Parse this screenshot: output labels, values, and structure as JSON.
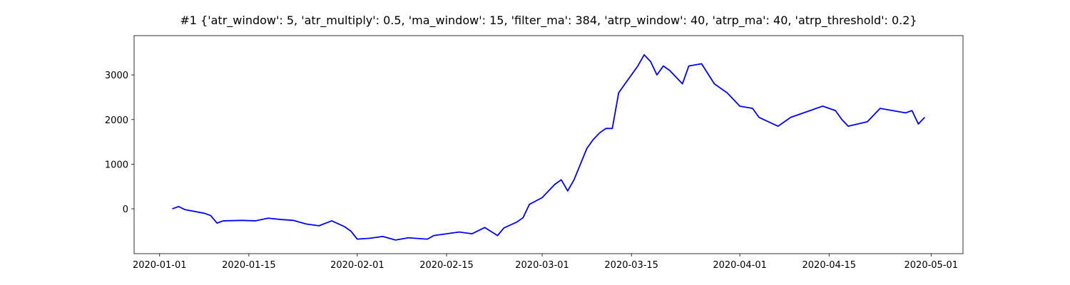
{
  "chart_data": {
    "type": "line",
    "title": "#1 {'atr_window': 5, 'atr_multiply': 0.5, 'ma_window': 15, 'filter_ma': 384, 'atrp_window': 40, 'atrp_ma': 40, 'atrp_threshold': 0.2}",
    "x": [
      "2020-01-03",
      "2020-01-04",
      "2020-01-05",
      "2020-01-08",
      "2020-01-09",
      "2020-01-10",
      "2020-01-11",
      "2020-01-14",
      "2020-01-16",
      "2020-01-18",
      "2020-01-20",
      "2020-01-22",
      "2020-01-24",
      "2020-01-26",
      "2020-01-28",
      "2020-01-30",
      "2020-01-31",
      "2020-02-01",
      "2020-02-03",
      "2020-02-05",
      "2020-02-07",
      "2020-02-09",
      "2020-02-12",
      "2020-02-13",
      "2020-02-15",
      "2020-02-17",
      "2020-02-19",
      "2020-02-21",
      "2020-02-23",
      "2020-02-24",
      "2020-02-26",
      "2020-02-27",
      "2020-02-28",
      "2020-03-01",
      "2020-03-02",
      "2020-03-03",
      "2020-03-04",
      "2020-03-05",
      "2020-03-06",
      "2020-03-07",
      "2020-03-08",
      "2020-03-09",
      "2020-03-10",
      "2020-03-11",
      "2020-03-12",
      "2020-03-13",
      "2020-03-14",
      "2020-03-16",
      "2020-03-17",
      "2020-03-18",
      "2020-03-19",
      "2020-03-20",
      "2020-03-21",
      "2020-03-23",
      "2020-03-24",
      "2020-03-26",
      "2020-03-28",
      "2020-03-30",
      "2020-04-01",
      "2020-04-03",
      "2020-04-04",
      "2020-04-07",
      "2020-04-09",
      "2020-04-11",
      "2020-04-14",
      "2020-04-16",
      "2020-04-17",
      "2020-04-18",
      "2020-04-21",
      "2020-04-23",
      "2020-04-25",
      "2020-04-27",
      "2020-04-28",
      "2020-04-29",
      "2020-04-30"
    ],
    "values": [
      0,
      50,
      -20,
      -100,
      -150,
      -320,
      -270,
      -260,
      -270,
      -210,
      -240,
      -260,
      -340,
      -380,
      -270,
      -400,
      -500,
      -680,
      -660,
      -620,
      -700,
      -650,
      -680,
      -600,
      -560,
      -520,
      -560,
      -420,
      -600,
      -430,
      -300,
      -200,
      100,
      250,
      400,
      550,
      650,
      400,
      650,
      1000,
      1350,
      1550,
      1700,
      1800,
      1800,
      2600,
      2800,
      3200,
      3450,
      3300,
      3000,
      3200,
      3100,
      2800,
      3200,
      3250,
      2800,
      2600,
      2300,
      2250,
      2050,
      1850,
      2050,
      2150,
      2300,
      2200,
      2000,
      1850,
      1950,
      2250,
      2200,
      2150,
      2200,
      1900,
      2050
    ],
    "color": "#0000ff",
    "xlim": [
      "2019-12-28",
      "2020-05-06"
    ],
    "xticks": [
      "2020-01-01",
      "2020-01-15",
      "2020-02-01",
      "2020-02-15",
      "2020-03-01",
      "2020-03-15",
      "2020-04-01",
      "2020-04-15",
      "2020-05-01"
    ],
    "ylim": [
      -1005,
      3880
    ],
    "yticks": [
      0,
      1000,
      2000,
      3000
    ]
  }
}
